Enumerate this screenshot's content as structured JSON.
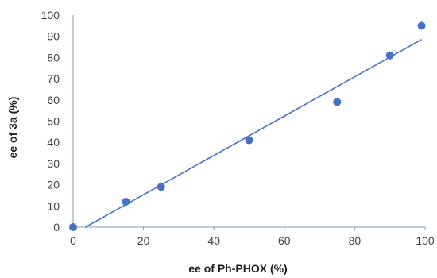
{
  "chart_data": {
    "type": "scatter",
    "title": "",
    "xlabel": "ee of Ph-PHOX (%)",
    "ylabel": "ee of 3a (%)",
    "xlim": [
      0,
      100
    ],
    "ylim": [
      0,
      100
    ],
    "xticks": [
      0,
      20,
      40,
      60,
      80,
      100
    ],
    "yticks": [
      0,
      10,
      20,
      30,
      40,
      50,
      60,
      70,
      80,
      90,
      100
    ],
    "grid": false,
    "legend": "none",
    "series": [
      {
        "points": [
          {
            "x": 0,
            "y": 0
          },
          {
            "x": 15,
            "y": 12
          },
          {
            "x": 25,
            "y": 19
          },
          {
            "x": 50,
            "y": 41
          },
          {
            "x": 75,
            "y": 59
          },
          {
            "x": 90,
            "y": 81
          },
          {
            "x": 99,
            "y": 95
          }
        ],
        "color": "#4472c4"
      }
    ],
    "trendline": {
      "type": "linear",
      "from": {
        "x": 3.5,
        "y": 0
      },
      "to": {
        "x": 99,
        "y": 88.5
      },
      "color": "#4472c4"
    }
  }
}
